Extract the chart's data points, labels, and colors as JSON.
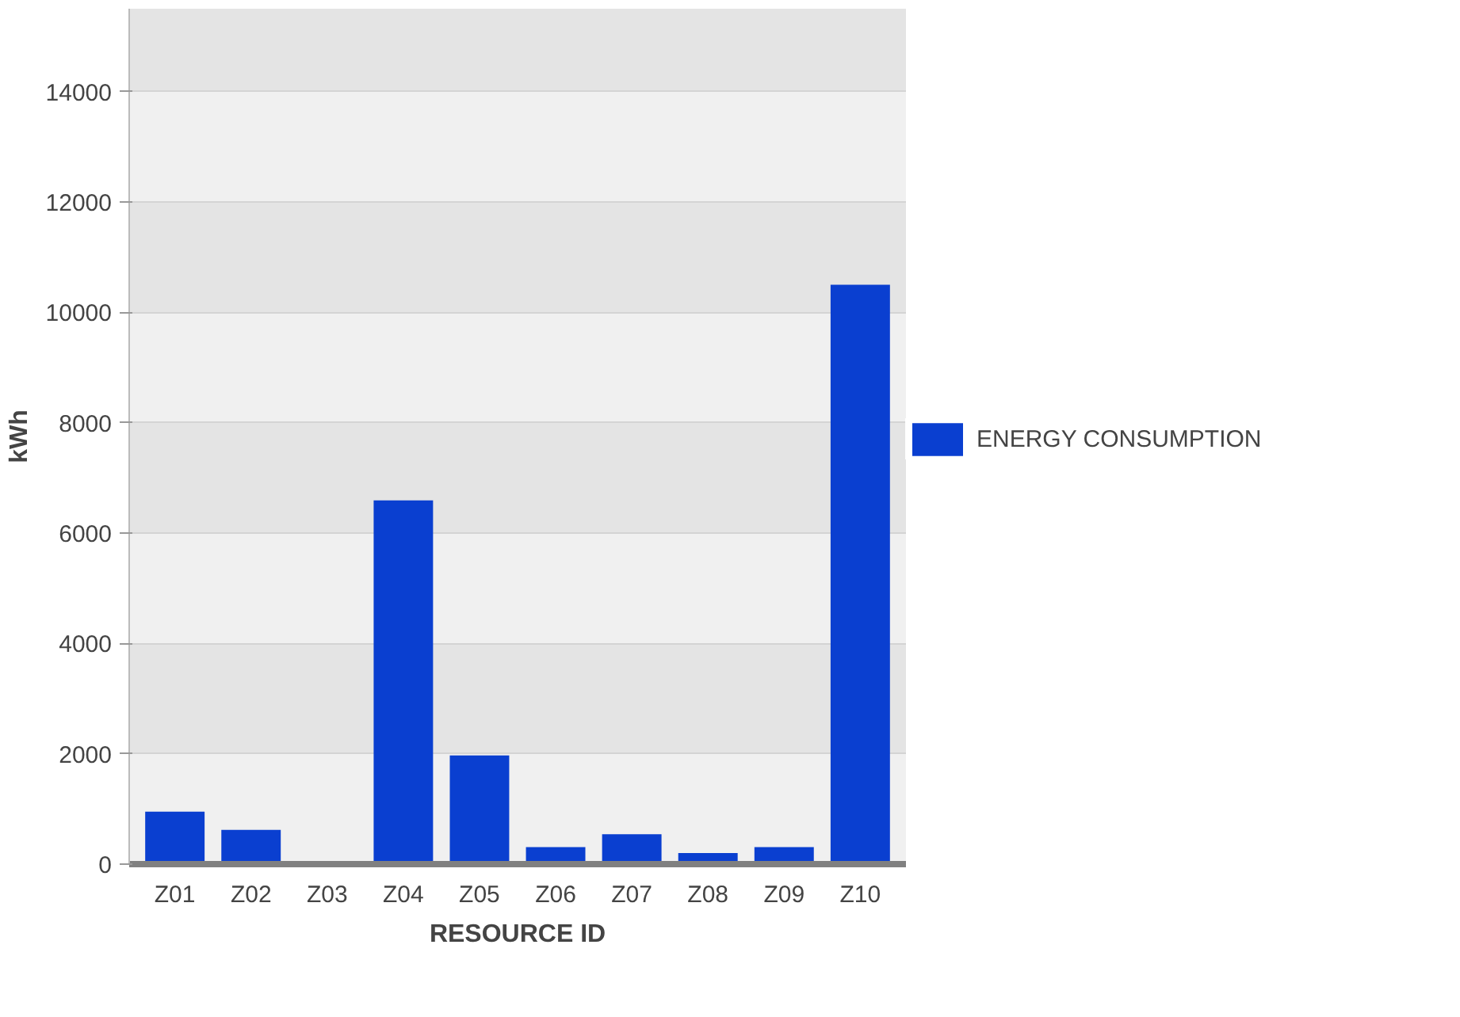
{
  "chart_data": {
    "type": "bar",
    "xlabel": "RESOURCE ID",
    "ylabel": "kWh",
    "categories": [
      "Z01",
      "Z02",
      "Z03",
      "Z04",
      "Z05",
      "Z06",
      "Z07",
      "Z08",
      "Z09",
      "Z10"
    ],
    "series": [
      {
        "name": "ENERGY CONSUMPTION",
        "color": "#0a3fd0",
        "values": [
          950,
          620,
          0,
          6590,
          1970,
          310,
          540,
          200,
          310,
          10500
        ]
      }
    ],
    "ylim": [
      0,
      15500
    ],
    "yticks": [
      0,
      2000,
      4000,
      6000,
      8000,
      10000,
      12000,
      14000
    ],
    "grid": "y",
    "legend": "right"
  }
}
